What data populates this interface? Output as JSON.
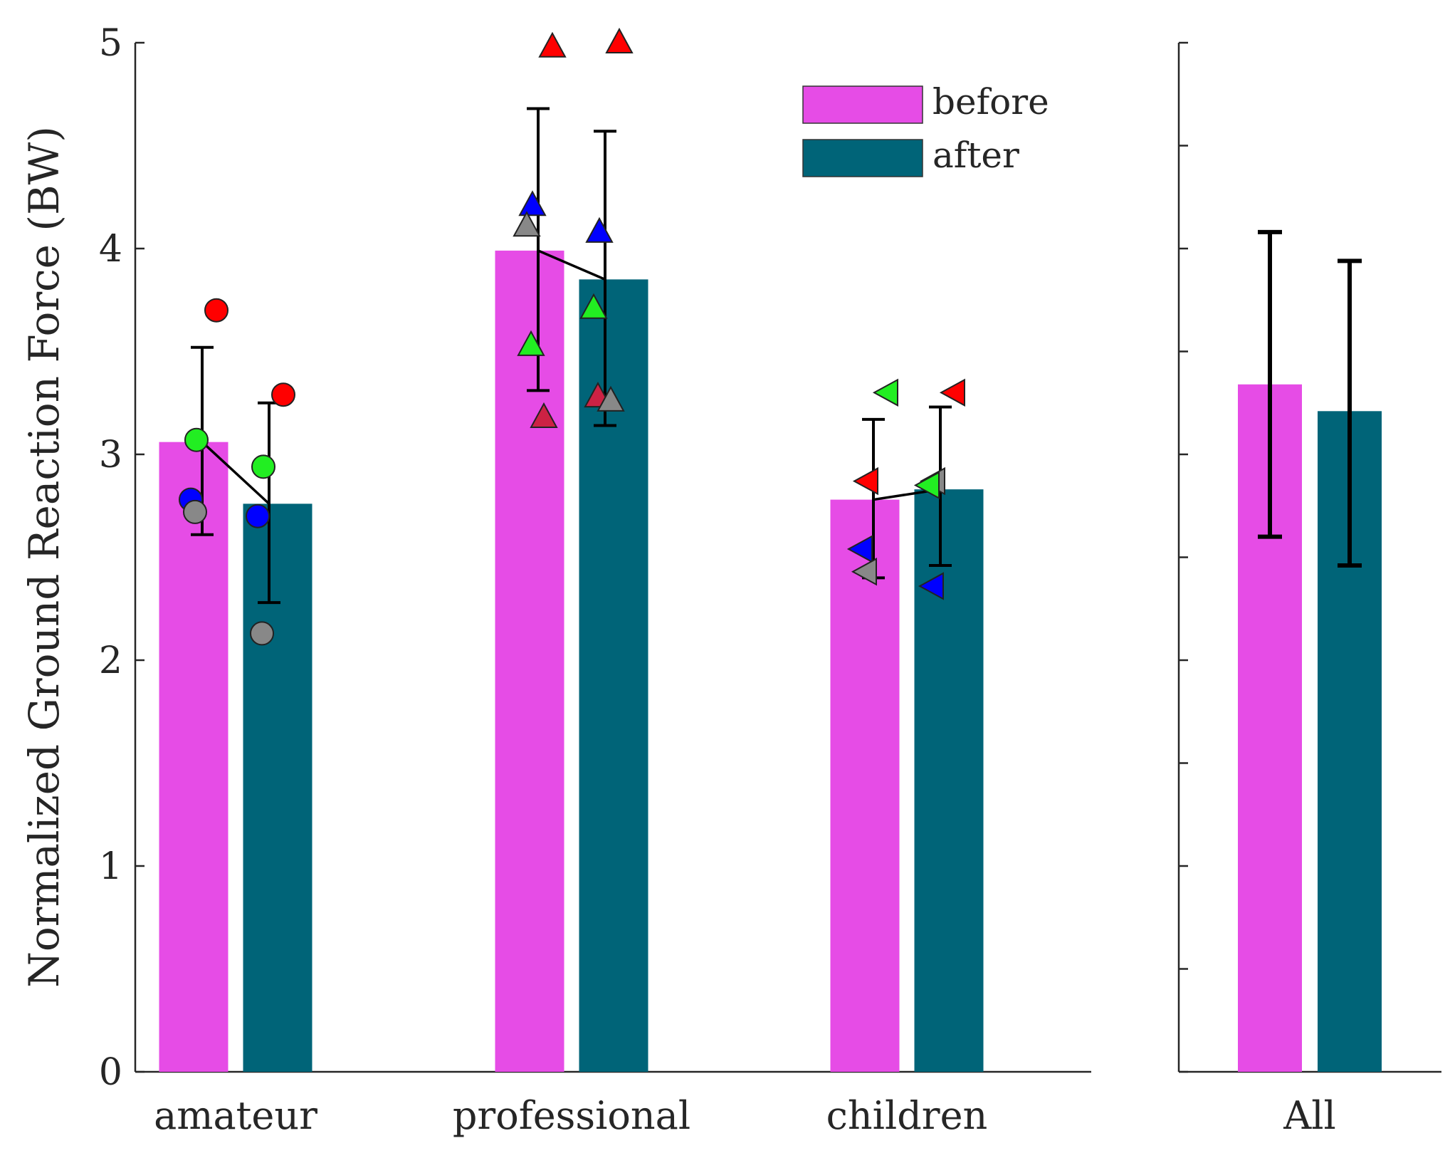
{
  "chart_data": {
    "type": "bar",
    "ylabel": "Normalized Ground Reaction Force (BW)",
    "ylim": [
      0,
      5
    ],
    "yticks": [
      0,
      1,
      2,
      3,
      4,
      5
    ],
    "yticks_right": [
      0,
      0.5,
      1,
      1.5,
      2,
      2.5,
      3,
      3.5,
      4,
      4.5,
      5
    ],
    "legend": {
      "position": "top-center",
      "entries": [
        {
          "label": "before",
          "color": "#e64ce6"
        },
        {
          "label": "after",
          "color": "#006478"
        }
      ]
    },
    "panels": [
      {
        "name": "groups",
        "categories": [
          "amateur",
          "professional",
          "children"
        ],
        "series": [
          {
            "name": "before",
            "color": "#e64ce6",
            "values": [
              3.06,
              3.99,
              2.78
            ],
            "err_low": [
              2.61,
              3.31,
              2.4
            ],
            "err_high": [
              3.52,
              4.68,
              3.17
            ],
            "individual": [
              [
                {
                  "v": 3.7,
                  "c": "#ff0000"
                },
                {
                  "v": 3.07,
                  "c": "#22ee22"
                },
                {
                  "v": 2.78,
                  "c": "#0000ff"
                },
                {
                  "v": 2.72,
                  "c": "#888888"
                }
              ],
              [
                {
                  "v": 4.98,
                  "c": "#ff0000"
                },
                {
                  "v": 4.21,
                  "c": "#0000ff"
                },
                {
                  "v": 4.11,
                  "c": "#888888"
                },
                {
                  "v": 3.53,
                  "c": "#22ee22"
                },
                {
                  "v": 3.18,
                  "c": "#cc2244"
                }
              ],
              [
                {
                  "v": 3.3,
                  "c": "#22ee22"
                },
                {
                  "v": 2.87,
                  "c": "#ff0000"
                },
                {
                  "v": 2.54,
                  "c": "#0000ff"
                },
                {
                  "v": 2.43,
                  "c": "#888888"
                }
              ]
            ]
          },
          {
            "name": "after",
            "color": "#006478",
            "values": [
              2.76,
              3.85,
              2.83
            ],
            "err_low": [
              2.28,
              3.14,
              2.46
            ],
            "err_high": [
              3.25,
              4.57,
              3.23
            ],
            "individual": [
              [
                {
                  "v": 3.29,
                  "c": "#ff0000"
                },
                {
                  "v": 2.94,
                  "c": "#22ee22"
                },
                {
                  "v": 2.7,
                  "c": "#0000ff"
                },
                {
                  "v": 2.13,
                  "c": "#888888"
                }
              ],
              [
                {
                  "v": 5.0,
                  "c": "#ff0000"
                },
                {
                  "v": 4.08,
                  "c": "#0000ff"
                },
                {
                  "v": 3.71,
                  "c": "#22ee22"
                },
                {
                  "v": 3.28,
                  "c": "#cc2244"
                },
                {
                  "v": 3.26,
                  "c": "#888888"
                }
              ],
              [
                {
                  "v": 3.3,
                  "c": "#ff0000"
                },
                {
                  "v": 2.87,
                  "c": "#888888"
                },
                {
                  "v": 2.85,
                  "c": "#22ee22"
                },
                {
                  "v": 2.36,
                  "c": "#0000ff"
                }
              ]
            ]
          }
        ],
        "markers": [
          "circle",
          "triangle-up",
          "triangle-left"
        ]
      },
      {
        "name": "overall",
        "categories": [
          "All"
        ],
        "series": [
          {
            "name": "before",
            "color": "#e64ce6",
            "values": [
              3.34
            ],
            "err_low": [
              2.6
            ],
            "err_high": [
              4.08
            ]
          },
          {
            "name": "after",
            "color": "#006478",
            "values": [
              3.21
            ],
            "err_low": [
              2.46
            ],
            "err_high": [
              3.94
            ]
          }
        ]
      }
    ]
  }
}
